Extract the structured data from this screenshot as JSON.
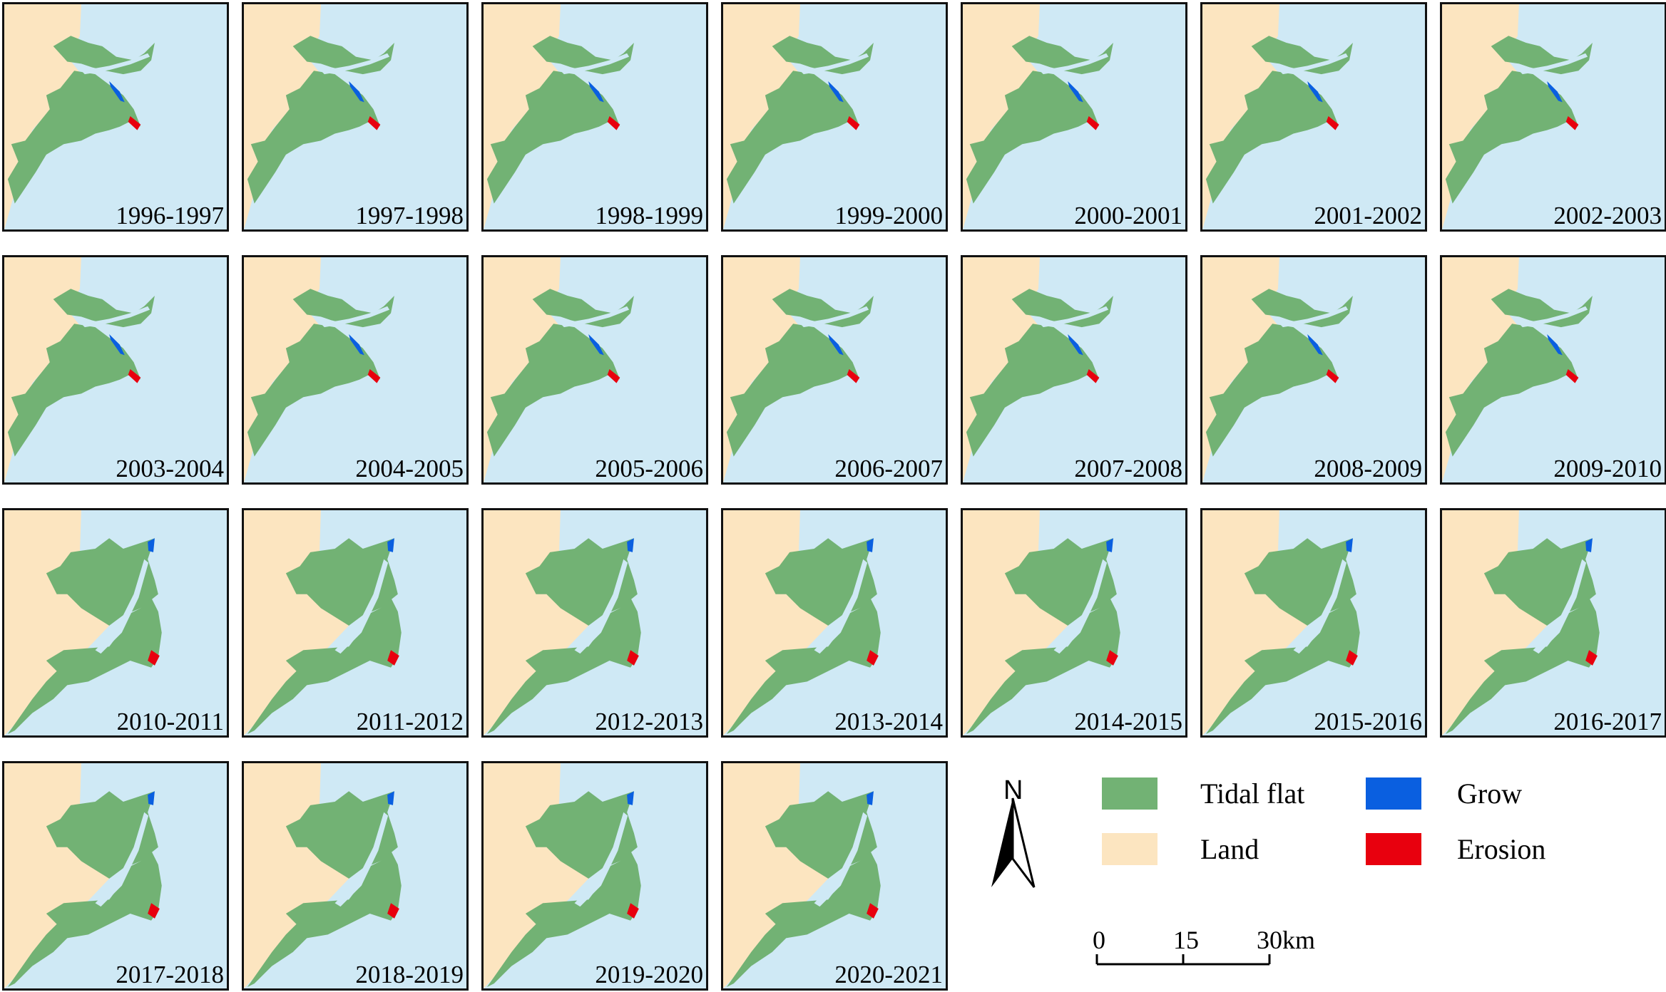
{
  "panels": [
    {
      "label": "1996-1997"
    },
    {
      "label": "1997-1998"
    },
    {
      "label": "1998-1999"
    },
    {
      "label": "1999-2000"
    },
    {
      "label": "2000-2001"
    },
    {
      "label": "2001-2002"
    },
    {
      "label": "2002-2003"
    },
    {
      "label": "2003-2004"
    },
    {
      "label": "2004-2005"
    },
    {
      "label": "2005-2006"
    },
    {
      "label": "2006-2007"
    },
    {
      "label": "2007-2008"
    },
    {
      "label": "2008-2009"
    },
    {
      "label": "2009-2010"
    },
    {
      "label": "2010-2011"
    },
    {
      "label": "2011-2012"
    },
    {
      "label": "2012-2013"
    },
    {
      "label": "2013-2014"
    },
    {
      "label": "2014-2015"
    },
    {
      "label": "2015-2016"
    },
    {
      "label": "2016-2017"
    },
    {
      "label": "2017-2018"
    },
    {
      "label": "2018-2019"
    },
    {
      "label": "2019-2020"
    },
    {
      "label": "2020-2021"
    }
  ],
  "legend": {
    "tidal_flat": "Tidal flat",
    "land": "Land",
    "grow": "Grow",
    "erosion": "Erosion"
  },
  "north_label": "N",
  "scale": {
    "zero": "0",
    "mid": "15",
    "end": "30km"
  },
  "colors": {
    "sea": "#cfe9f5",
    "land": "#fce5c0",
    "tidal_flat": "#72b274",
    "grow": "#0a5fe0",
    "erosion": "#e8000e"
  }
}
